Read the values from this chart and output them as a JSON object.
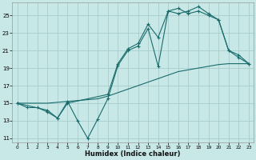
{
  "xlabel": "Humidex (Indice chaleur)",
  "bg_color": "#c8e8e8",
  "grid_color": "#a8cccc",
  "line_color": "#1a6b6b",
  "xlim": [
    -0.5,
    23.5
  ],
  "ylim": [
    10.5,
    26.5
  ],
  "xticks": [
    0,
    1,
    2,
    3,
    4,
    5,
    6,
    7,
    8,
    9,
    10,
    11,
    12,
    13,
    14,
    15,
    16,
    17,
    18,
    19,
    20,
    21,
    22,
    23
  ],
  "yticks": [
    11,
    13,
    15,
    17,
    19,
    21,
    23,
    25
  ],
  "line1_x": [
    0,
    1,
    2,
    3,
    4,
    5,
    6,
    7,
    8,
    9,
    10,
    11,
    12,
    13,
    14,
    15,
    16,
    17,
    18,
    19,
    20,
    21,
    22,
    23
  ],
  "line1_y": [
    15.0,
    14.5,
    14.5,
    14.0,
    13.3,
    15.2,
    13.0,
    11.0,
    13.2,
    15.5,
    19.3,
    21.0,
    21.5,
    23.5,
    19.2,
    25.5,
    25.8,
    25.2,
    25.5,
    25.0,
    24.5,
    21.0,
    20.2,
    19.5
  ],
  "line2_x": [
    0,
    3,
    4,
    5,
    9,
    10,
    11,
    12,
    13,
    14,
    15,
    16,
    17,
    18,
    19,
    20,
    21,
    22,
    23
  ],
  "line2_y": [
    15.0,
    14.2,
    13.3,
    15.0,
    16.0,
    19.5,
    21.2,
    21.8,
    24.0,
    22.5,
    25.5,
    25.2,
    25.5,
    26.0,
    25.2,
    24.5,
    21.0,
    20.5,
    19.5
  ],
  "line3_x": [
    0,
    1,
    2,
    3,
    4,
    5,
    6,
    7,
    8,
    9,
    10,
    11,
    12,
    13,
    14,
    15,
    16,
    17,
    18,
    19,
    20,
    21,
    22,
    23
  ],
  "line3_y": [
    15.0,
    15.0,
    15.0,
    15.0,
    15.1,
    15.2,
    15.3,
    15.4,
    15.5,
    15.8,
    16.2,
    16.6,
    17.0,
    17.4,
    17.8,
    18.2,
    18.6,
    18.8,
    19.0,
    19.2,
    19.4,
    19.5,
    19.5,
    19.5
  ]
}
